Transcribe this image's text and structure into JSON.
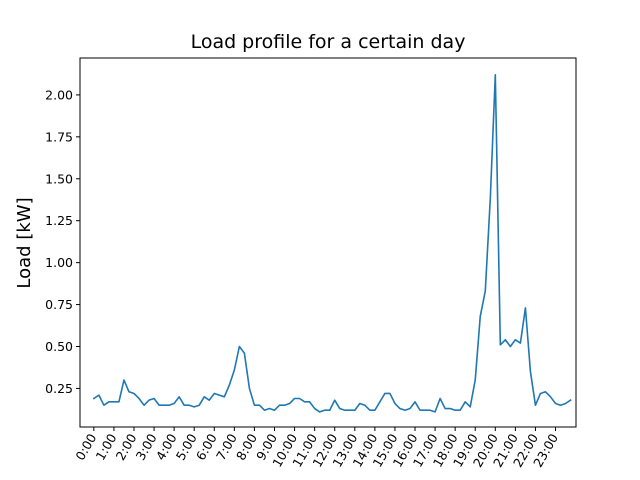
{
  "chart_data": {
    "type": "line",
    "title": "Load profile for a certain day",
    "xlabel": "",
    "ylabel": "Load [kW]",
    "x_tick_labels": [
      "0:00",
      "1:00",
      "2:00",
      "3:00",
      "4:00",
      "5:00",
      "6:00",
      "7:00",
      "8:00",
      "9:00",
      "10:00",
      "11:00",
      "12:00",
      "13:00",
      "14:00",
      "15:00",
      "16:00",
      "17:00",
      "18:00",
      "19:00",
      "20:00",
      "21:00",
      "22:00",
      "23:00"
    ],
    "x_tick_rotation_deg": 60,
    "y_ticks": [
      0.25,
      0.5,
      0.75,
      1.0,
      1.25,
      1.5,
      1.75,
      2.0
    ],
    "y_tick_labels": [
      "0.25",
      "0.50",
      "0.75",
      "1.00",
      "1.25",
      "1.50",
      "1.75",
      "2.00"
    ],
    "xlim": [
      -0.69,
      24.02
    ],
    "ylim": [
      0.02,
      2.22
    ],
    "grid": false,
    "color": "#1f77b4",
    "series": [
      {
        "x_step_hours": 0.25,
        "values": [
          0.19,
          0.21,
          0.15,
          0.17,
          0.17,
          0.17,
          0.3,
          0.23,
          0.22,
          0.19,
          0.15,
          0.18,
          0.19,
          0.15,
          0.15,
          0.15,
          0.16,
          0.2,
          0.15,
          0.15,
          0.14,
          0.15,
          0.2,
          0.18,
          0.22,
          0.21,
          0.2,
          0.27,
          0.36,
          0.5,
          0.46,
          0.25,
          0.15,
          0.15,
          0.12,
          0.13,
          0.12,
          0.15,
          0.15,
          0.16,
          0.19,
          0.19,
          0.17,
          0.17,
          0.13,
          0.11,
          0.12,
          0.12,
          0.18,
          0.13,
          0.12,
          0.12,
          0.12,
          0.16,
          0.15,
          0.12,
          0.12,
          0.17,
          0.22,
          0.22,
          0.16,
          0.13,
          0.12,
          0.13,
          0.17,
          0.12,
          0.12,
          0.12,
          0.11,
          0.19,
          0.13,
          0.13,
          0.12,
          0.12,
          0.17,
          0.14,
          0.3,
          0.68,
          0.83,
          1.38,
          2.12,
          0.51,
          0.54,
          0.5,
          0.54,
          0.52,
          0.73,
          0.35,
          0.15,
          0.22,
          0.23,
          0.2,
          0.16,
          0.15,
          0.16,
          0.18
        ]
      }
    ]
  }
}
